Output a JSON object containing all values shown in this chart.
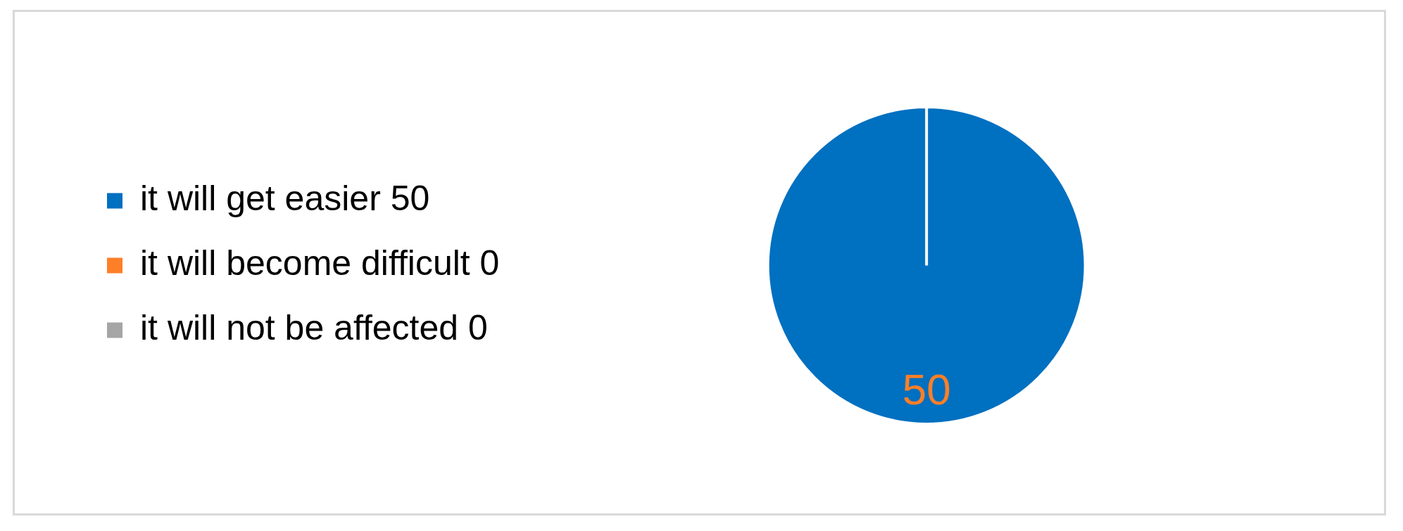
{
  "chart_data": {
    "type": "pie",
    "categories": [
      "it will get easier 50",
      "it will become difficult 0",
      "it will not be affected 0"
    ],
    "values": [
      50,
      0,
      0
    ],
    "colors": [
      "#0070c0",
      "#ff7f27",
      "#a5a5a5"
    ],
    "value_labels": [
      "50",
      null,
      null
    ],
    "legend": "left"
  }
}
